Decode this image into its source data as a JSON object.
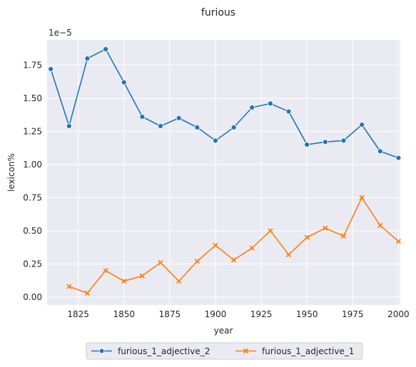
{
  "chart_data": {
    "type": "line",
    "title": "furious",
    "xlabel": "year",
    "ylabel": "lexicon%",
    "y_offset_label": "1e−5",
    "xlim": [
      1808,
      2001
    ],
    "ylim": [
      -0.06,
      1.94
    ],
    "xticks": [
      1825,
      1850,
      1875,
      1900,
      1925,
      1950,
      1975,
      2000
    ],
    "yticks": [
      0.0,
      0.25,
      0.5,
      0.75,
      1.0,
      1.25,
      1.5,
      1.75
    ],
    "ytick_labels": [
      "0.00",
      "0.25",
      "0.50",
      "0.75",
      "1.00",
      "1.25",
      "1.50",
      "1.75"
    ],
    "grid": true,
    "legend_placement": "bottom-center, below axes",
    "background": "#eaeaf2",
    "series": [
      {
        "name": "furious_1_adjective_2",
        "color": "#1f77b4",
        "marker": "circle",
        "x": [
          1810,
          1820,
          1830,
          1840,
          1850,
          1860,
          1870,
          1880,
          1890,
          1900,
          1910,
          1920,
          1930,
          1940,
          1950,
          1960,
          1970,
          1980,
          1990,
          2000
        ],
        "y": [
          1.72,
          1.29,
          1.8,
          1.87,
          1.62,
          1.36,
          1.29,
          1.35,
          1.28,
          1.18,
          1.28,
          1.43,
          1.46,
          1.4,
          1.15,
          1.17,
          1.18,
          1.3,
          1.1,
          1.05
        ]
      },
      {
        "name": "furious_1_adjective_1",
        "color": "#ff7f0e",
        "marker": "x",
        "x": [
          1820,
          1830,
          1840,
          1850,
          1860,
          1870,
          1880,
          1890,
          1900,
          1910,
          1920,
          1930,
          1940,
          1950,
          1960,
          1970,
          1980,
          1990,
          2000
        ],
        "y": [
          0.08,
          0.03,
          0.2,
          0.12,
          0.16,
          0.26,
          0.12,
          0.27,
          0.39,
          0.28,
          0.37,
          0.5,
          0.32,
          0.45,
          0.52,
          0.46,
          0.75,
          0.54,
          0.42
        ]
      }
    ]
  }
}
